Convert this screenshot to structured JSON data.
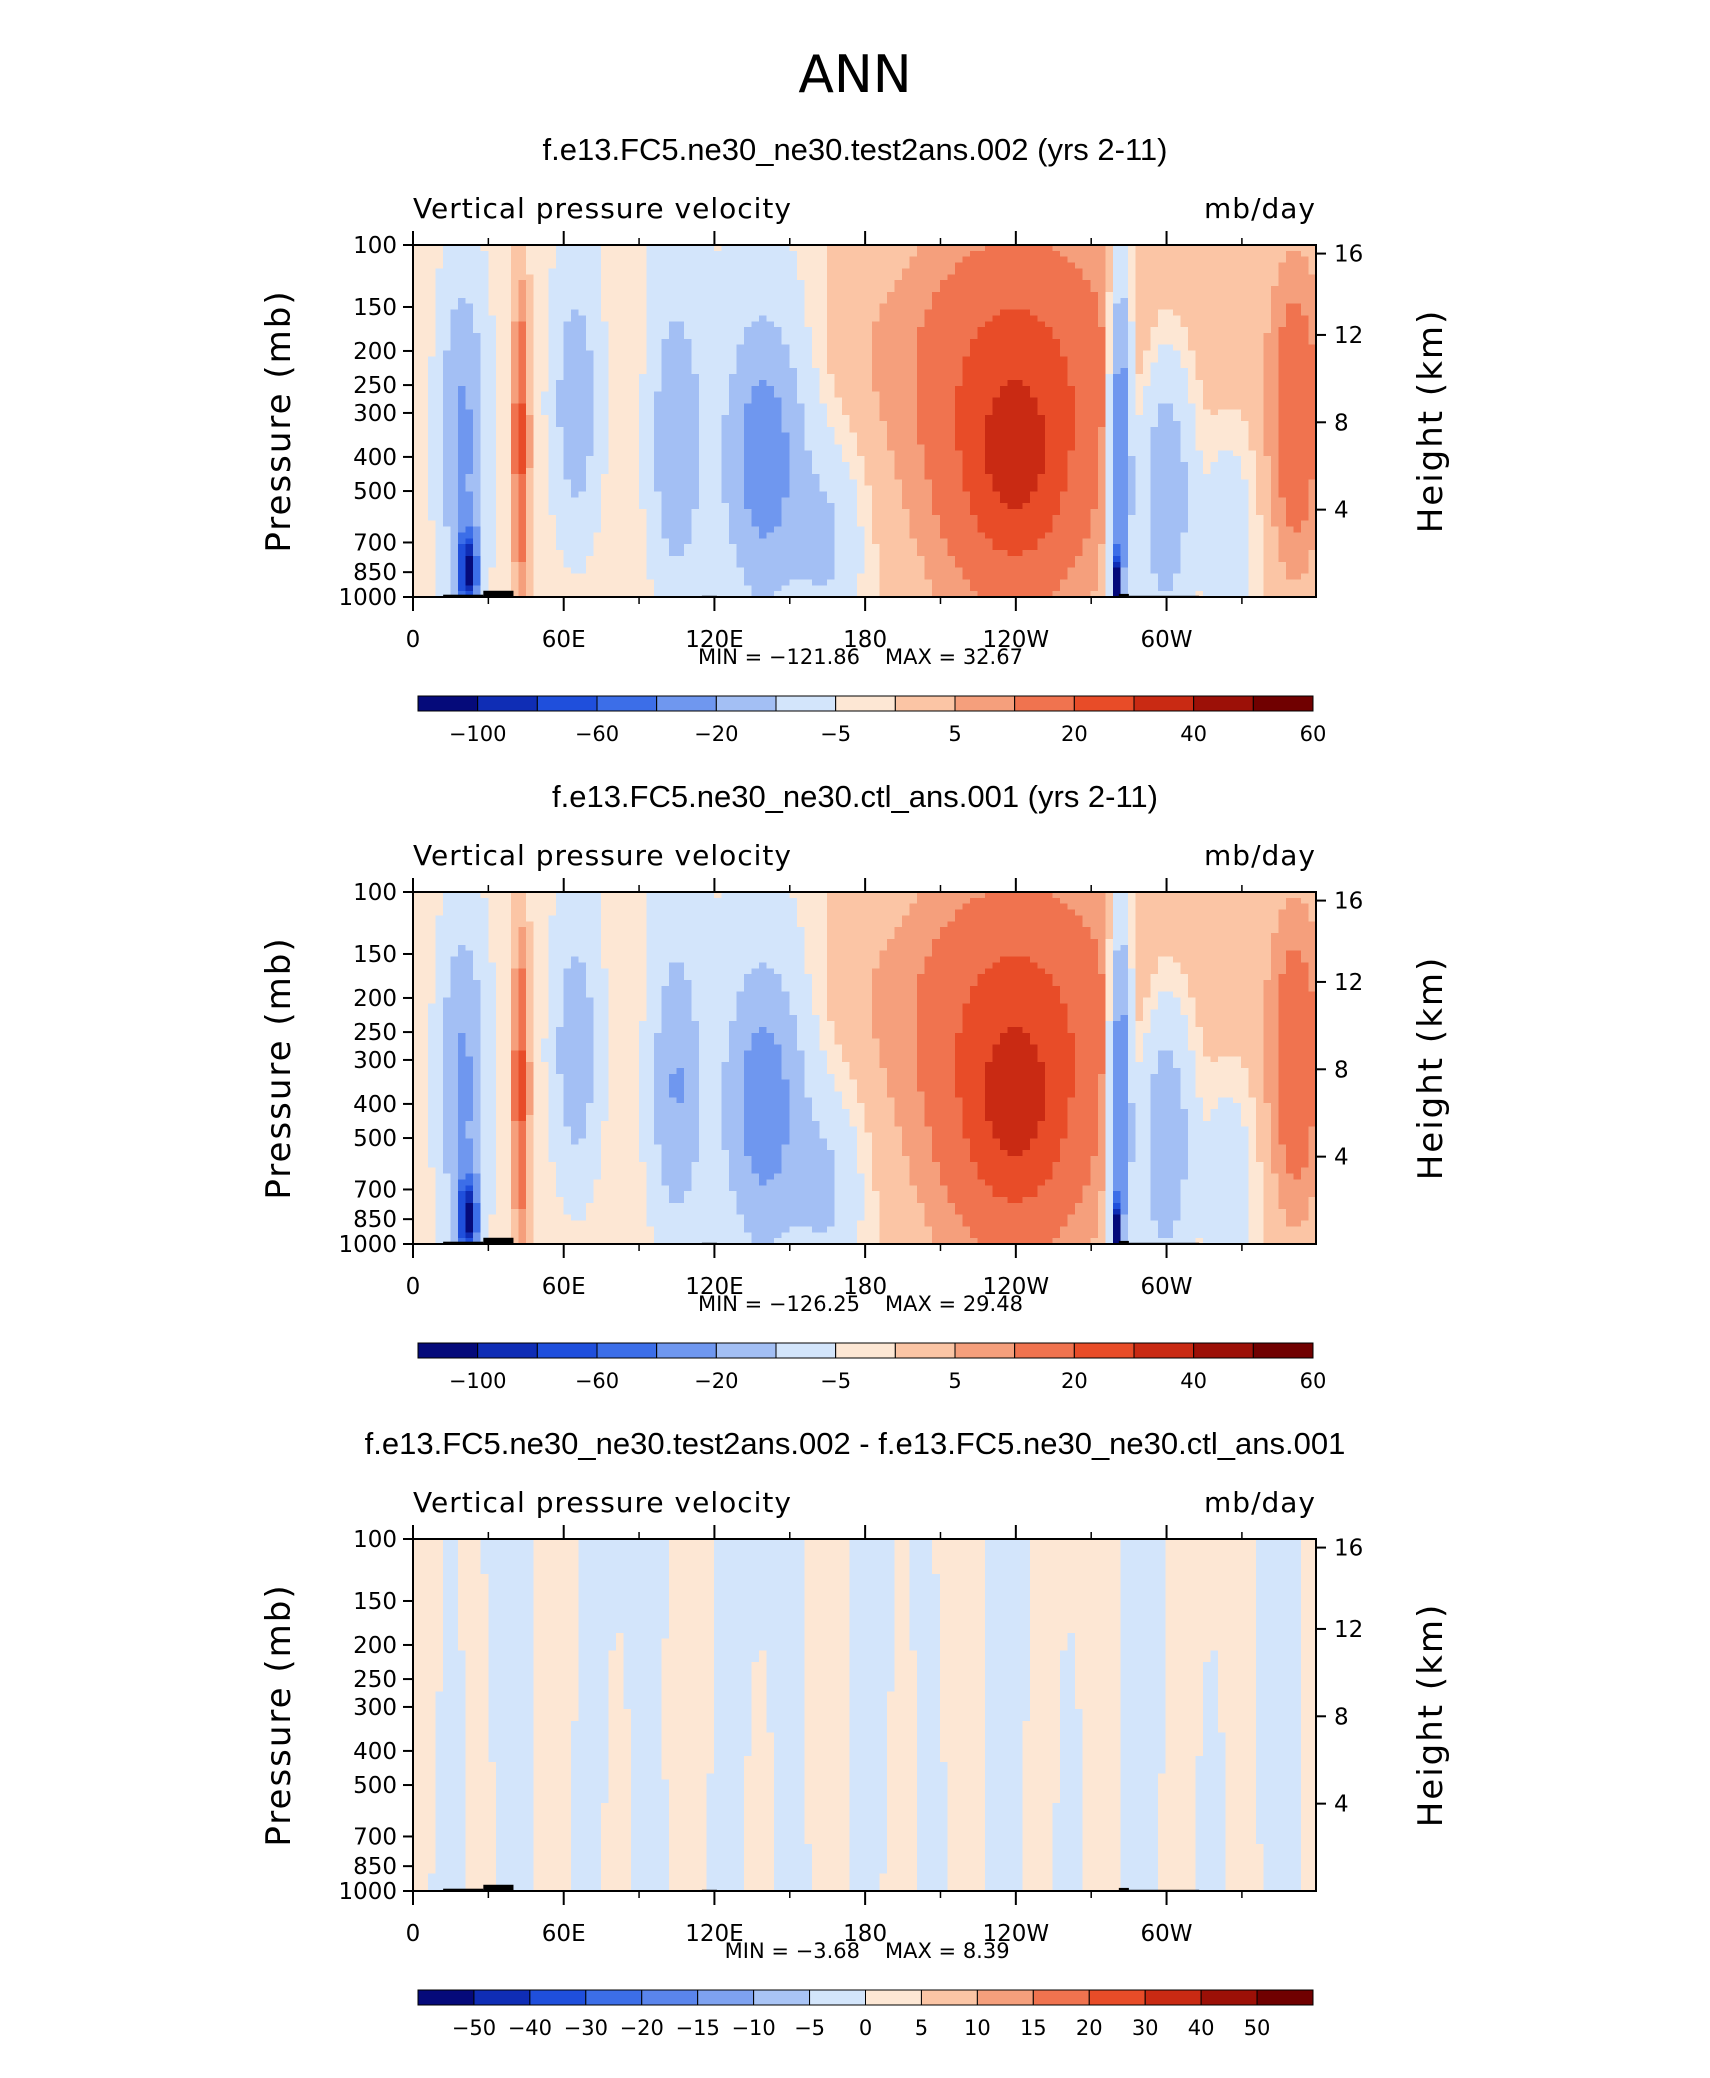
{
  "figure": {
    "title": "ANN"
  },
  "chart_data": [
    {
      "type": "heatmap",
      "title": "f.e13.FC5.ne30_ne30.test2ans.002 (yrs 2-11)",
      "variable_label": "Vertical pressure velocity",
      "units_label": "mb/day",
      "ylabel": "Pressure (mb)",
      "ylabel_right": "Height (km)",
      "xticks": [
        "0",
        "60E",
        "120E",
        "180",
        "120W",
        "60W"
      ],
      "yticks_left": [
        "100",
        "150",
        "200",
        "250",
        "300",
        "400",
        "500",
        "700",
        "850",
        "1000"
      ],
      "yticks_right": [
        "16",
        "12",
        "8",
        "4"
      ],
      "min_label": "MIN = −121.86",
      "max_label": "MAX =   32.67",
      "min": -121.86,
      "max": 32.67,
      "colorbar": {
        "levels": [
          "−100",
          "−60",
          "−20",
          "−5",
          "5",
          "20",
          "40",
          "60"
        ],
        "colors": [
          "#050a7a",
          "#0f2db5",
          "#1f4fdc",
          "#3c6ee8",
          "#6f97ef",
          "#a3bff4",
          "#d3e5fb",
          "#fde7d4",
          "#fbc5a5",
          "#f59f7c",
          "#f0734f",
          "#e84c28",
          "#c92a13",
          "#9c1007",
          "#700000"
        ]
      },
      "field": "full"
    },
    {
      "type": "heatmap",
      "title": "f.e13.FC5.ne30_ne30.ctl_ans.001 (yrs 2-11)",
      "variable_label": "Vertical pressure velocity",
      "units_label": "mb/day",
      "ylabel": "Pressure (mb)",
      "ylabel_right": "Height (km)",
      "xticks": [
        "0",
        "60E",
        "120E",
        "180",
        "120W",
        "60W"
      ],
      "yticks_left": [
        "100",
        "150",
        "200",
        "250",
        "300",
        "400",
        "500",
        "700",
        "850",
        "1000"
      ],
      "yticks_right": [
        "16",
        "12",
        "8",
        "4"
      ],
      "min_label": "MIN = −126.25",
      "max_label": "MAX =   29.48",
      "min": -126.25,
      "max": 29.48,
      "colorbar": {
        "levels": [
          "−100",
          "−60",
          "−20",
          "−5",
          "5",
          "20",
          "40",
          "60"
        ],
        "colors": [
          "#050a7a",
          "#0f2db5",
          "#1f4fdc",
          "#3c6ee8",
          "#6f97ef",
          "#a3bff4",
          "#d3e5fb",
          "#fde7d4",
          "#fbc5a5",
          "#f59f7c",
          "#f0734f",
          "#e84c28",
          "#c92a13",
          "#9c1007",
          "#700000"
        ]
      },
      "field": "full"
    },
    {
      "type": "heatmap",
      "title": "f.e13.FC5.ne30_ne30.test2ans.002 - f.e13.FC5.ne30_ne30.ctl_ans.001",
      "variable_label": "Vertical pressure velocity",
      "units_label": "mb/day",
      "ylabel": "Pressure (mb)",
      "ylabel_right": "Height (km)",
      "xticks": [
        "0",
        "60E",
        "120E",
        "180",
        "120W",
        "60W"
      ],
      "yticks_left": [
        "100",
        "150",
        "200",
        "250",
        "300",
        "400",
        "500",
        "700",
        "850",
        "1000"
      ],
      "yticks_right": [
        "16",
        "12",
        "8",
        "4"
      ],
      "min_label": "MIN =   −3.68",
      "max_label": "MAX =    8.39",
      "min": -3.68,
      "max": 8.39,
      "colorbar": {
        "levels": [
          "−50",
          "−40",
          "−30",
          "−20",
          "−15",
          "−10",
          "−5",
          "0",
          "5",
          "10",
          "15",
          "20",
          "30",
          "40",
          "50"
        ],
        "colors": [
          "#050a7a",
          "#0f2db5",
          "#1f4fdc",
          "#3c6ee8",
          "#5a85ec",
          "#7ea2f0",
          "#a9c4f5",
          "#d3e5fb",
          "#fde7d4",
          "#fbc5a5",
          "#f59f7c",
          "#f0734f",
          "#e84c28",
          "#c92a13",
          "#9c1007",
          "#700000"
        ]
      },
      "field": "diff"
    }
  ]
}
